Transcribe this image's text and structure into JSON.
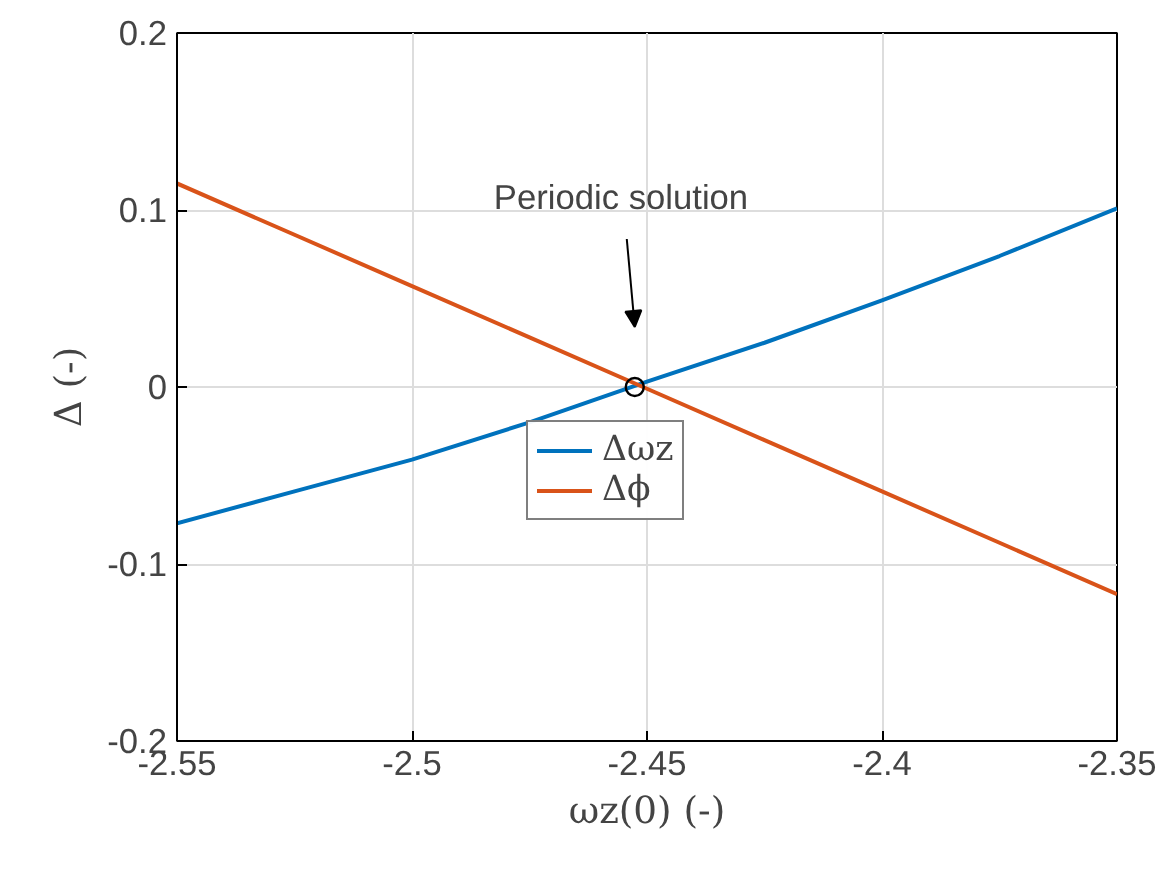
{
  "chart_data": {
    "type": "line",
    "xlabel": "ωz(0) (-)",
    "ylabel": "Δ (-)",
    "x": [
      -2.55,
      -2.525,
      -2.5,
      -2.475,
      -2.45,
      -2.425,
      -2.4,
      -2.375,
      -2.35
    ],
    "series": [
      {
        "name": "Δωz",
        "color": "#0072bd",
        "values": [
          -0.077,
          -0.059,
          -0.041,
          -0.02,
          0.003,
          0.025,
          0.049,
          0.074,
          0.101
        ]
      },
      {
        "name": "Δϕ",
        "color": "#d95319",
        "values": [
          0.115,
          0.086,
          0.057,
          0.028,
          -0.001,
          -0.03,
          -0.059,
          -0.088,
          -0.117
        ]
      },
      {
        "type": "scatter",
        "color": "#000000",
        "marker": "circle",
        "x": [
          -2.4526
        ],
        "values": [
          0
        ]
      }
    ],
    "annotations": [
      "Periodic solution"
    ],
    "xlim": [
      -2.55,
      -2.35
    ],
    "xticks": [
      -2.55,
      -2.5,
      -2.45,
      -2.4,
      -2.35
    ],
    "ylim": [
      -0.2,
      0.2
    ],
    "yticks": [
      -0.2,
      -0.1,
      0,
      0.1,
      0.2
    ],
    "grid": true,
    "legend": "center",
    "line_style": "solid"
  }
}
